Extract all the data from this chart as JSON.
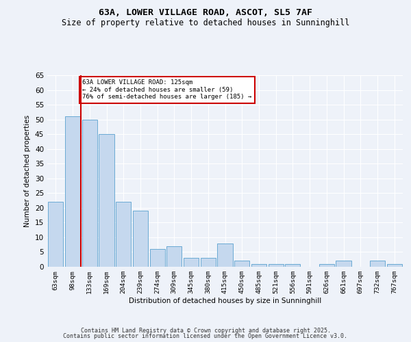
{
  "title1": "63A, LOWER VILLAGE ROAD, ASCOT, SL5 7AF",
  "title2": "Size of property relative to detached houses in Sunninghill",
  "xlabel": "Distribution of detached houses by size in Sunninghill",
  "ylabel": "Number of detached properties",
  "categories": [
    "63sqm",
    "98sqm",
    "133sqm",
    "169sqm",
    "204sqm",
    "239sqm",
    "274sqm",
    "309sqm",
    "345sqm",
    "380sqm",
    "415sqm",
    "450sqm",
    "485sqm",
    "521sqm",
    "556sqm",
    "591sqm",
    "626sqm",
    "661sqm",
    "697sqm",
    "732sqm",
    "767sqm"
  ],
  "values": [
    22,
    51,
    50,
    45,
    22,
    19,
    6,
    7,
    3,
    3,
    8,
    2,
    1,
    1,
    1,
    0,
    1,
    2,
    0,
    2,
    1
  ],
  "bar_color": "#c5d8ee",
  "bar_edge_color": "#6aaad4",
  "red_line_x": 1.5,
  "annotation_text": "63A LOWER VILLAGE ROAD: 125sqm\n← 24% of detached houses are smaller (59)\n76% of semi-detached houses are larger (185) →",
  "annotation_box_color": "#ffffff",
  "annotation_box_edge": "#cc0000",
  "red_line_color": "#cc0000",
  "ylim": [
    0,
    65
  ],
  "yticks": [
    0,
    5,
    10,
    15,
    20,
    25,
    30,
    35,
    40,
    45,
    50,
    55,
    60,
    65
  ],
  "bg_color": "#eef2f9",
  "grid_color": "#ffffff",
  "footer1": "Contains HM Land Registry data © Crown copyright and database right 2025.",
  "footer2": "Contains public sector information licensed under the Open Government Licence v3.0."
}
